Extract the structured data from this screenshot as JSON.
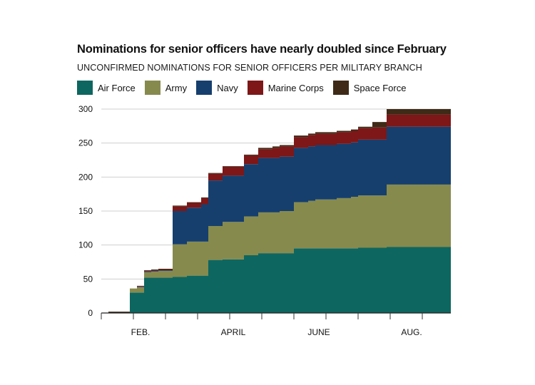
{
  "chart_data": {
    "type": "area",
    "title": "Nominations for senior officers have nearly doubled since February",
    "subtitle": "UNCONFIRMED NOMINATIONS FOR SENIOR OFFICERS PER MILITARY BRANCH",
    "stacked": true,
    "step": true,
    "legend_position": "top",
    "grid": true,
    "ylim": [
      0,
      300
    ],
    "yticks": [
      0,
      50,
      100,
      150,
      200,
      250,
      300
    ],
    "xlim": [
      0,
      49
    ],
    "xticks": [
      {
        "x": 5.5,
        "label": "FEB."
      },
      {
        "x": 18.5,
        "label": "APRIL"
      },
      {
        "x": 30.5,
        "label": "JUNE"
      },
      {
        "x": 43.5,
        "label": "AUG."
      }
    ],
    "x": [
      0,
      1,
      2,
      3,
      4,
      5,
      6,
      7,
      8,
      9,
      10,
      11,
      12,
      13,
      14,
      15,
      16,
      17,
      18,
      19,
      20,
      21,
      22,
      23,
      24,
      25,
      26,
      27,
      28,
      29,
      30,
      31,
      32,
      33,
      34,
      35,
      36,
      37,
      38,
      39,
      40,
      41,
      42,
      43,
      44,
      45,
      46,
      47,
      48
    ],
    "series": [
      {
        "name": "Air Force",
        "color": "#0e6660",
        "values": [
          0,
          0,
          0,
          0,
          30,
          30,
          52,
          52,
          52,
          52,
          53,
          53,
          55,
          55,
          55,
          78,
          78,
          79,
          79,
          79,
          85,
          85,
          88,
          88,
          88,
          88,
          88,
          95,
          95,
          95,
          95,
          95,
          95,
          95,
          95,
          95,
          96,
          96,
          96,
          96,
          97,
          97,
          97,
          97,
          97,
          97,
          97,
          97,
          97
        ]
      },
      {
        "name": "Army",
        "color": "#868a4d",
        "values": [
          0,
          0,
          0,
          0,
          6,
          8,
          8,
          9,
          10,
          10,
          48,
          48,
          50,
          50,
          50,
          50,
          50,
          55,
          55,
          55,
          57,
          57,
          60,
          60,
          60,
          62,
          62,
          68,
          68,
          70,
          72,
          72,
          72,
          74,
          74,
          76,
          77,
          77,
          77,
          77,
          92,
          92,
          92,
          92,
          92,
          92,
          92,
          92,
          92
        ]
      },
      {
        "name": "Navy",
        "color": "#163f6e",
        "values": [
          0,
          0,
          0,
          0,
          0,
          1,
          1,
          1,
          1,
          1,
          49,
          49,
          50,
          50,
          55,
          67,
          67,
          68,
          68,
          68,
          77,
          77,
          80,
          80,
          80,
          80,
          80,
          80,
          80,
          80,
          80,
          80,
          80,
          80,
          80,
          80,
          82,
          82,
          82,
          82,
          85,
          85,
          85,
          85,
          85,
          85,
          85,
          85,
          85
        ]
      },
      {
        "name": "Marine Corps",
        "color": "#7d1718",
        "values": [
          0,
          0,
          0,
          0,
          0,
          1,
          1,
          1,
          1,
          1,
          7,
          7,
          7,
          7,
          9,
          10,
          10,
          13,
          13,
          13,
          13,
          13,
          13,
          13,
          15,
          15,
          15,
          16,
          16,
          17,
          17,
          17,
          17,
          17,
          17,
          17,
          17,
          17,
          18,
          18,
          18,
          18,
          18,
          18,
          18,
          18,
          18,
          18,
          18
        ]
      },
      {
        "name": "Space Force",
        "color": "#3e2a17",
        "values": [
          0,
          2,
          2,
          2,
          0,
          0,
          1,
          1,
          1,
          1,
          1,
          1,
          1,
          1,
          1,
          1,
          1,
          1,
          1,
          1,
          1,
          1,
          2,
          2,
          2,
          2,
          2,
          2,
          2,
          2,
          2,
          2,
          2,
          2,
          2,
          2,
          2,
          2,
          8,
          8,
          8,
          8,
          8,
          8,
          8,
          8,
          8,
          8,
          8
        ]
      }
    ]
  }
}
